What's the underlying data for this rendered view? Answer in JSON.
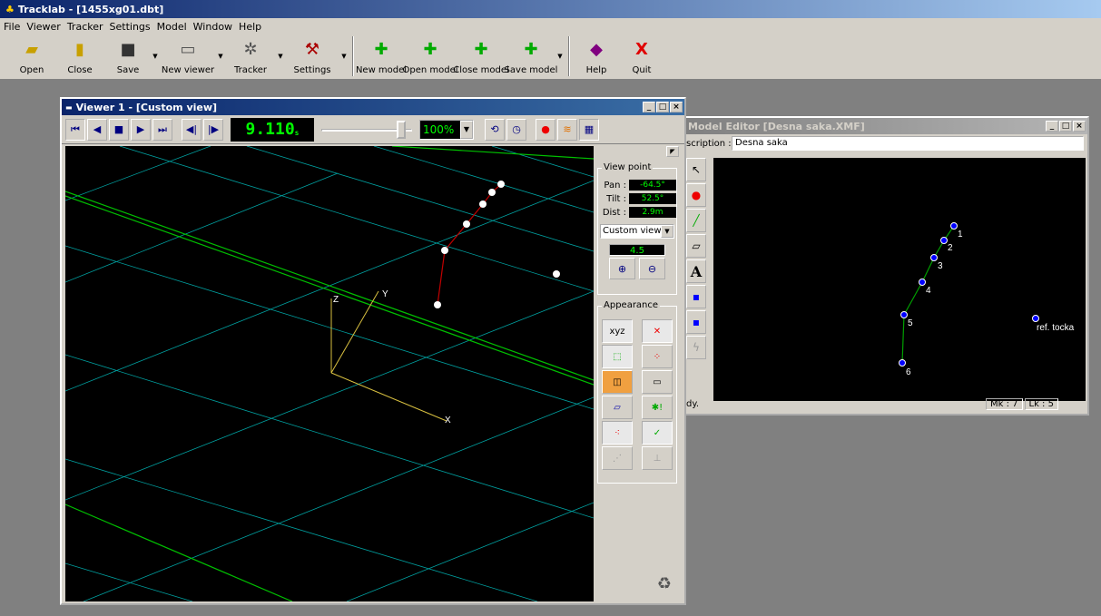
{
  "app": {
    "title": "Tracklab - [1455xg01.dbt]"
  },
  "menu": [
    "File",
    "Viewer",
    "Tracker",
    "Settings",
    "Model",
    "Window",
    "Help"
  ],
  "toolbar": {
    "open": "Open",
    "close": "Close",
    "save": "Save",
    "new_viewer": "New viewer",
    "tracker": "Tracker",
    "settings": "Settings",
    "new_model": "New model",
    "open_model": "Open model",
    "close_model": "Close model",
    "save_model": "Save model",
    "help": "Help",
    "quit": "Quit"
  },
  "viewer": {
    "title": "Viewer 1 - [Custom view]",
    "time": "9.110",
    "time_unit": "s",
    "zoom": "100%",
    "slider_position": 0.92,
    "viewpoint": {
      "title": "View point",
      "pan_label": "Pan :",
      "pan": "-64.5°",
      "tilt_label": "Tilt :",
      "tilt": "52.5°",
      "dist_label": "Dist :",
      "dist": "2.9m",
      "view_select": "Custom view",
      "zoom_value": "4.5"
    },
    "appearance_title": "Appearance",
    "axes": {
      "x": "X",
      "y": "Y",
      "z": "Z"
    }
  },
  "model_editor": {
    "title": "Model Editor [Desna saka.XMF]",
    "description_label": "Description :",
    "description_visible_label": "scription :",
    "description": "Desna saka",
    "markers": [
      "1",
      "2",
      "3",
      "4",
      "5",
      "6",
      "ref. tocka"
    ],
    "status": "dy.",
    "mk": "Mk : 7",
    "lk": "Lk : 5"
  },
  "colors": {
    "accent_green": "#00ff00",
    "grid": "#00a0a0",
    "link_red": "#c00000",
    "link_green": "#00a000",
    "marker_blue": "#0000ff"
  }
}
